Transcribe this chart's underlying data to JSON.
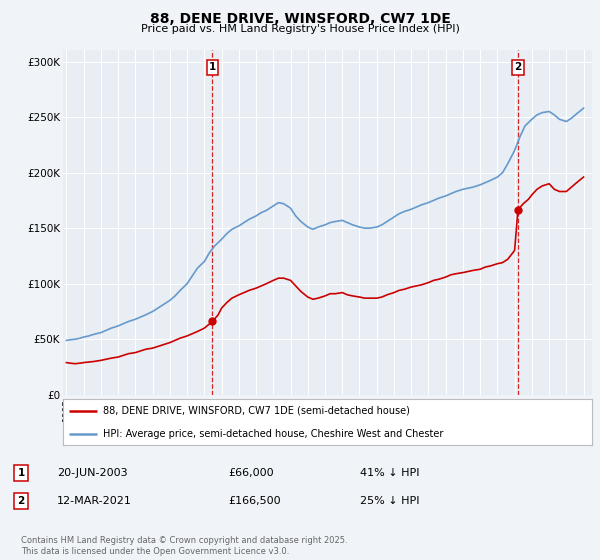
{
  "title": "88, DENE DRIVE, WINSFORD, CW7 1DE",
  "subtitle": "Price paid vs. HM Land Registry's House Price Index (HPI)",
  "background_color": "#f0f4f8",
  "plot_bg_color": "#e8eef4",
  "grid_color": "#ffffff",
  "red_color": "#cc0000",
  "blue_color": "#6699cc",
  "marker1_date": 2003.47,
  "marker1_value": 66000,
  "marker2_date": 2021.19,
  "marker2_value": 166500,
  "ylim": [
    0,
    310000
  ],
  "xlim": [
    1994.8,
    2025.5
  ],
  "yticks": [
    0,
    50000,
    100000,
    150000,
    200000,
    250000,
    300000
  ],
  "ytick_labels": [
    "£0",
    "£50K",
    "£100K",
    "£150K",
    "£200K",
    "£250K",
    "£300K"
  ],
  "xticks": [
    1995,
    1996,
    1997,
    1998,
    1999,
    2000,
    2001,
    2002,
    2003,
    2004,
    2005,
    2006,
    2007,
    2008,
    2009,
    2010,
    2011,
    2012,
    2013,
    2014,
    2015,
    2016,
    2017,
    2018,
    2019,
    2020,
    2021,
    2022,
    2023,
    2024,
    2025
  ],
  "legend_label_red": "88, DENE DRIVE, WINSFORD, CW7 1DE (semi-detached house)",
  "legend_label_blue": "HPI: Average price, semi-detached house, Cheshire West and Chester",
  "annotation1_text": "20-JUN-2003",
  "annotation1_price": "£66,000",
  "annotation1_hpi": "41% ↓ HPI",
  "annotation2_text": "12-MAR-2021",
  "annotation2_price": "£166,500",
  "annotation2_hpi": "25% ↓ HPI",
  "footer": "Contains HM Land Registry data © Crown copyright and database right 2025.\nThis data is licensed under the Open Government Licence v3.0.",
  "red_series": [
    [
      1995.0,
      29000
    ],
    [
      1995.2,
      28500
    ],
    [
      1995.5,
      28000
    ],
    [
      1995.8,
      28500
    ],
    [
      1996.0,
      29000
    ],
    [
      1996.3,
      29500
    ],
    [
      1996.6,
      30000
    ],
    [
      1997.0,
      31000
    ],
    [
      1997.3,
      32000
    ],
    [
      1997.6,
      33000
    ],
    [
      1998.0,
      34000
    ],
    [
      1998.3,
      35500
    ],
    [
      1998.6,
      37000
    ],
    [
      1999.0,
      38000
    ],
    [
      1999.3,
      39500
    ],
    [
      1999.6,
      41000
    ],
    [
      2000.0,
      42000
    ],
    [
      2000.3,
      43500
    ],
    [
      2000.6,
      45000
    ],
    [
      2001.0,
      47000
    ],
    [
      2001.3,
      49000
    ],
    [
      2001.6,
      51000
    ],
    [
      2002.0,
      53000
    ],
    [
      2002.3,
      55000
    ],
    [
      2002.6,
      57000
    ],
    [
      2003.0,
      60000
    ],
    [
      2003.47,
      66000
    ],
    [
      2003.8,
      72000
    ],
    [
      2004.0,
      78000
    ],
    [
      2004.3,
      83000
    ],
    [
      2004.6,
      87000
    ],
    [
      2005.0,
      90000
    ],
    [
      2005.3,
      92000
    ],
    [
      2005.6,
      94000
    ],
    [
      2006.0,
      96000
    ],
    [
      2006.3,
      98000
    ],
    [
      2006.6,
      100000
    ],
    [
      2007.0,
      103000
    ],
    [
      2007.3,
      105000
    ],
    [
      2007.6,
      105000
    ],
    [
      2008.0,
      103000
    ],
    [
      2008.3,
      98000
    ],
    [
      2008.6,
      93000
    ],
    [
      2009.0,
      88000
    ],
    [
      2009.3,
      86000
    ],
    [
      2009.6,
      87000
    ],
    [
      2010.0,
      89000
    ],
    [
      2010.3,
      91000
    ],
    [
      2010.6,
      91000
    ],
    [
      2011.0,
      92000
    ],
    [
      2011.3,
      90000
    ],
    [
      2011.6,
      89000
    ],
    [
      2012.0,
      88000
    ],
    [
      2012.3,
      87000
    ],
    [
      2012.6,
      87000
    ],
    [
      2013.0,
      87000
    ],
    [
      2013.3,
      88000
    ],
    [
      2013.6,
      90000
    ],
    [
      2014.0,
      92000
    ],
    [
      2014.3,
      94000
    ],
    [
      2014.6,
      95000
    ],
    [
      2015.0,
      97000
    ],
    [
      2015.3,
      98000
    ],
    [
      2015.6,
      99000
    ],
    [
      2016.0,
      101000
    ],
    [
      2016.3,
      103000
    ],
    [
      2016.6,
      104000
    ],
    [
      2017.0,
      106000
    ],
    [
      2017.3,
      108000
    ],
    [
      2017.6,
      109000
    ],
    [
      2018.0,
      110000
    ],
    [
      2018.3,
      111000
    ],
    [
      2018.6,
      112000
    ],
    [
      2019.0,
      113000
    ],
    [
      2019.3,
      115000
    ],
    [
      2019.6,
      116000
    ],
    [
      2020.0,
      118000
    ],
    [
      2020.3,
      119000
    ],
    [
      2020.6,
      122000
    ],
    [
      2021.0,
      130000
    ],
    [
      2021.19,
      166500
    ],
    [
      2021.5,
      172000
    ],
    [
      2021.8,
      176000
    ],
    [
      2022.0,
      180000
    ],
    [
      2022.3,
      185000
    ],
    [
      2022.6,
      188000
    ],
    [
      2023.0,
      190000
    ],
    [
      2023.3,
      185000
    ],
    [
      2023.6,
      183000
    ],
    [
      2024.0,
      183000
    ],
    [
      2024.3,
      187000
    ],
    [
      2024.6,
      191000
    ],
    [
      2025.0,
      196000
    ]
  ],
  "blue_series": [
    [
      1995.0,
      49000
    ],
    [
      1995.2,
      49500
    ],
    [
      1995.5,
      50000
    ],
    [
      1995.8,
      51000
    ],
    [
      1996.0,
      52000
    ],
    [
      1996.3,
      53000
    ],
    [
      1996.6,
      54500
    ],
    [
      1997.0,
      56000
    ],
    [
      1997.3,
      58000
    ],
    [
      1997.6,
      60000
    ],
    [
      1998.0,
      62000
    ],
    [
      1998.3,
      64000
    ],
    [
      1998.6,
      66000
    ],
    [
      1999.0,
      68000
    ],
    [
      1999.3,
      70000
    ],
    [
      1999.6,
      72000
    ],
    [
      2000.0,
      75000
    ],
    [
      2000.3,
      78000
    ],
    [
      2000.6,
      81000
    ],
    [
      2001.0,
      85000
    ],
    [
      2001.3,
      89000
    ],
    [
      2001.6,
      94000
    ],
    [
      2002.0,
      100000
    ],
    [
      2002.3,
      107000
    ],
    [
      2002.6,
      114000
    ],
    [
      2003.0,
      120000
    ],
    [
      2003.3,
      128000
    ],
    [
      2003.6,
      134000
    ],
    [
      2004.0,
      140000
    ],
    [
      2004.3,
      145000
    ],
    [
      2004.6,
      149000
    ],
    [
      2005.0,
      152000
    ],
    [
      2005.3,
      155000
    ],
    [
      2005.6,
      158000
    ],
    [
      2006.0,
      161000
    ],
    [
      2006.3,
      164000
    ],
    [
      2006.6,
      166000
    ],
    [
      2007.0,
      170000
    ],
    [
      2007.3,
      173000
    ],
    [
      2007.6,
      172000
    ],
    [
      2008.0,
      168000
    ],
    [
      2008.3,
      161000
    ],
    [
      2008.6,
      156000
    ],
    [
      2009.0,
      151000
    ],
    [
      2009.3,
      149000
    ],
    [
      2009.6,
      151000
    ],
    [
      2010.0,
      153000
    ],
    [
      2010.3,
      155000
    ],
    [
      2010.6,
      156000
    ],
    [
      2011.0,
      157000
    ],
    [
      2011.3,
      155000
    ],
    [
      2011.6,
      153000
    ],
    [
      2012.0,
      151000
    ],
    [
      2012.3,
      150000
    ],
    [
      2012.6,
      150000
    ],
    [
      2013.0,
      151000
    ],
    [
      2013.3,
      153000
    ],
    [
      2013.6,
      156000
    ],
    [
      2014.0,
      160000
    ],
    [
      2014.3,
      163000
    ],
    [
      2014.6,
      165000
    ],
    [
      2015.0,
      167000
    ],
    [
      2015.3,
      169000
    ],
    [
      2015.6,
      171000
    ],
    [
      2016.0,
      173000
    ],
    [
      2016.3,
      175000
    ],
    [
      2016.6,
      177000
    ],
    [
      2017.0,
      179000
    ],
    [
      2017.3,
      181000
    ],
    [
      2017.6,
      183000
    ],
    [
      2018.0,
      185000
    ],
    [
      2018.3,
      186000
    ],
    [
      2018.6,
      187000
    ],
    [
      2019.0,
      189000
    ],
    [
      2019.3,
      191000
    ],
    [
      2019.6,
      193000
    ],
    [
      2020.0,
      196000
    ],
    [
      2020.3,
      200000
    ],
    [
      2020.6,
      208000
    ],
    [
      2021.0,
      220000
    ],
    [
      2021.3,
      232000
    ],
    [
      2021.6,
      242000
    ],
    [
      2022.0,
      248000
    ],
    [
      2022.3,
      252000
    ],
    [
      2022.6,
      254000
    ],
    [
      2023.0,
      255000
    ],
    [
      2023.3,
      252000
    ],
    [
      2023.6,
      248000
    ],
    [
      2024.0,
      246000
    ],
    [
      2024.3,
      249000
    ],
    [
      2024.6,
      253000
    ],
    [
      2025.0,
      258000
    ]
  ]
}
